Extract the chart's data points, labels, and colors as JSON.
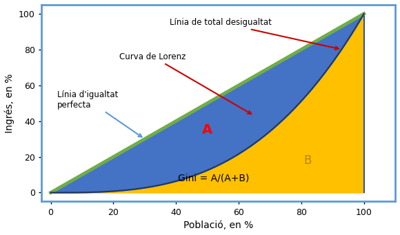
{
  "title": "",
  "xlabel": "Població, en %",
  "ylabel": "Ingrés, en %",
  "xlim": [
    -3,
    110
  ],
  "ylim": [
    -5,
    105
  ],
  "xticks": [
    0,
    20,
    40,
    60,
    80,
    100
  ],
  "yticks": [
    0,
    20,
    40,
    60,
    80,
    100
  ],
  "bg_color": "#ffffff",
  "ax_bg_color": "#ffffff",
  "border_color": "#5b9bd5",
  "equality_line_color": "#70ad47",
  "region_A_color": "#4472c4",
  "region_B_color": "#ffc000",
  "arrow_color_red": "#cc0000",
  "arrow_color_blue": "#5b9bd5",
  "label_A": "A",
  "label_B": "B",
  "label_gini": "Gini = A/(A+B)",
  "label_equality": "Línia d'igualtat\nperfecta",
  "label_lorenz": "Curva de Lorenz",
  "label_inequality": "Línia de total desigualtat",
  "lorenz_exponent": 3.0,
  "annotation_fontsize": 8.5,
  "label_fontsize_AB": 14,
  "label_fontsize_gini": 10,
  "xlabel_fontsize": 10,
  "ylabel_fontsize": 10
}
